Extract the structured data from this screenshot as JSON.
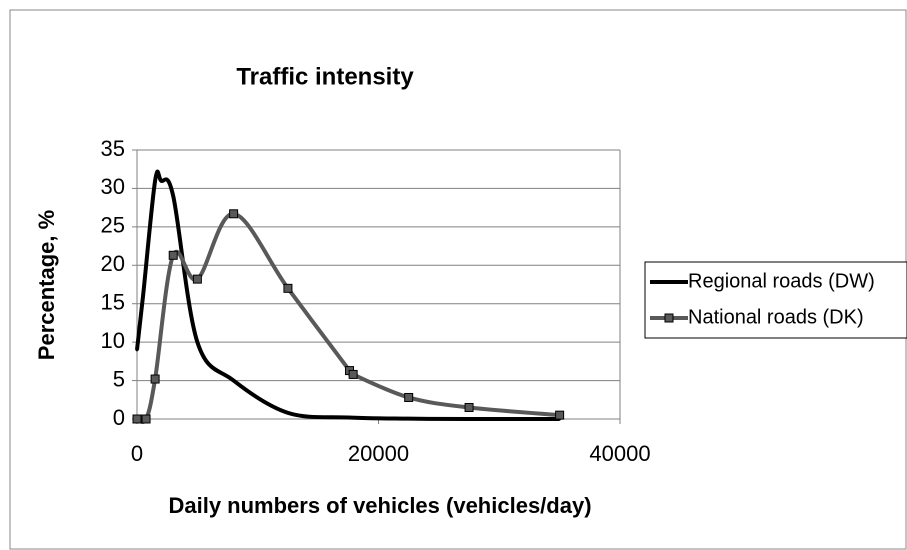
{
  "chart_data": {
    "type": "line",
    "title": "Traffic intensity",
    "x_label": "Daily numbers of vehicles (vehicles/day)",
    "y_label": "Percentage, %",
    "xlim": [
      0,
      40000
    ],
    "xticks": [
      0,
      20000,
      40000
    ],
    "ylim": [
      0,
      35
    ],
    "yticks": [
      0,
      5,
      10,
      15,
      20,
      25,
      30,
      35
    ],
    "grid": true,
    "legend": "right",
    "series": [
      {
        "name": "Regional roads (DW)",
        "color": "#000000",
        "marker": "none",
        "x": [
          0,
          500,
          1500,
          2000,
          3000,
          5000,
          8000,
          12500,
          17500,
          22500,
          27500,
          35000
        ],
        "values": [
          9,
          16,
          31,
          31,
          29,
          10,
          5,
          0.8,
          0.2,
          0.05,
          0,
          0
        ]
      },
      {
        "name": "National roads (DK)",
        "color": "#595959",
        "marker": "square",
        "x": [
          0,
          750,
          1500,
          3000,
          5000,
          8000,
          12500,
          17600,
          17900,
          22500,
          27500,
          35000
        ],
        "values": [
          0,
          0,
          5.2,
          21.3,
          18.2,
          26.7,
          17,
          6.3,
          5.8,
          2.8,
          1.5,
          0.5
        ]
      }
    ]
  }
}
